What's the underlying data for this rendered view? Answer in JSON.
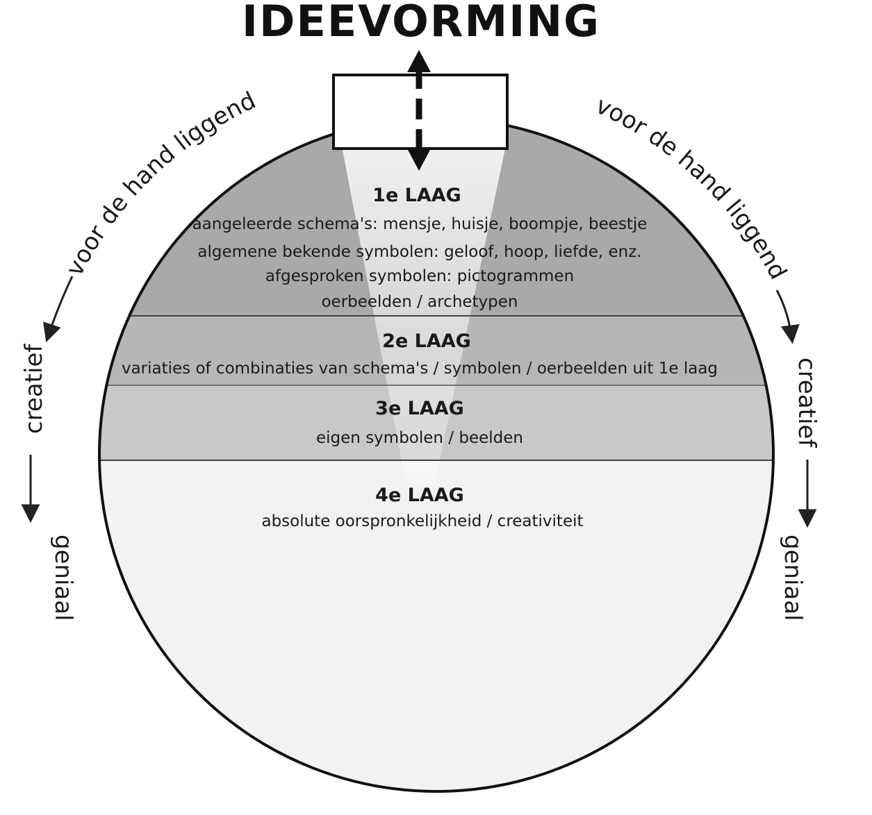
{
  "title": "IDEEVORMING",
  "layers": [
    {
      "title": "1e LAAG",
      "lines": [
        "aangeleerde schema's: mensje, huisje, boompje, beestje",
        "algemene bekende symbolen: geloof, hoop, liefde, enz.",
        "afgesproken symbolen: pictogrammen",
        "oerbeelden / archetypen"
      ],
      "fill": "#a9a9a9"
    },
    {
      "title": "2e LAAG",
      "lines": [
        "variaties of combinaties van schema's / symbolen / oerbeelden uit 1e laag"
      ],
      "fill": "#b6b6b6"
    },
    {
      "title": "3e LAAG",
      "lines": [
        "eigen symbolen / beelden"
      ],
      "fill": "#c8c8c8"
    },
    {
      "title": "4e LAAG",
      "lines": [
        "absolute oorspronkelijkheid / creativiteit"
      ],
      "fill": "#f2f2f2"
    }
  ],
  "left_side": {
    "label_top": "voor de hand liggend",
    "label_mid": "creatief",
    "label_bottom": "geniaal"
  },
  "right_side": {
    "label_top": "voor de hand liggend",
    "label_mid": "creatief",
    "label_bottom": "geniaal"
  }
}
